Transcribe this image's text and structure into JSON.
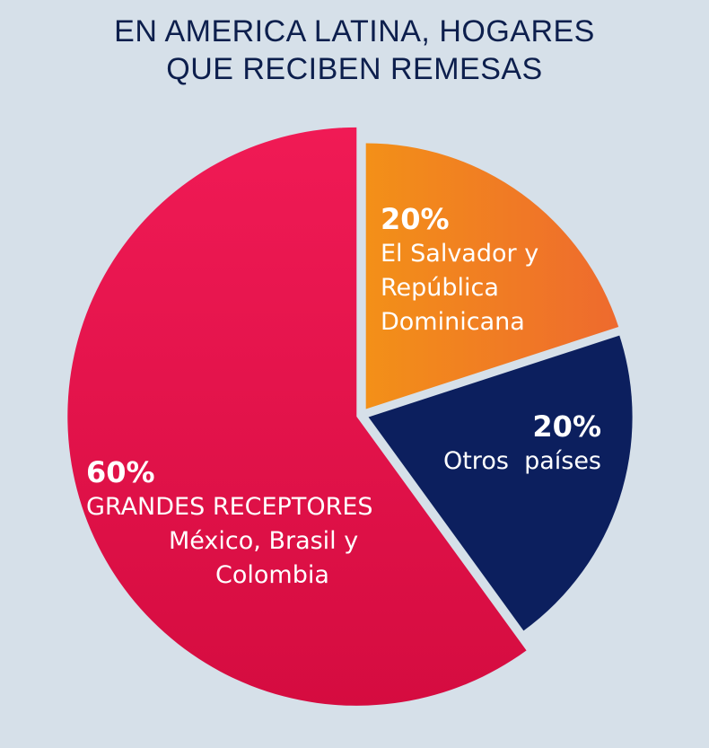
{
  "title_line1": "EN AMERICA LATINA, HOGARES",
  "title_line2": "QUE RECIBEN REMESAS",
  "chart_data": {
    "type": "pie",
    "title": "EN AMERICA LATINA, HOGARES QUE RECIBEN REMESAS",
    "slices": [
      {
        "value": 20,
        "label_pct": "20%",
        "lines": [
          "El Salvador y",
          "República",
          "Dominicana"
        ],
        "color": "#f2811f",
        "color2": "#ee6a2e"
      },
      {
        "value": 20,
        "label_pct": "20%",
        "lines": [
          "Otros  países"
        ],
        "color": "#0c1f5e"
      },
      {
        "value": 60,
        "label_pct": "60%",
        "lines": [
          "GRANDES RECEPTORES",
          "México, Brasil y",
          "Colombia"
        ],
        "color": "#ee1f55",
        "color2": "#d81243"
      }
    ],
    "units": "%"
  }
}
